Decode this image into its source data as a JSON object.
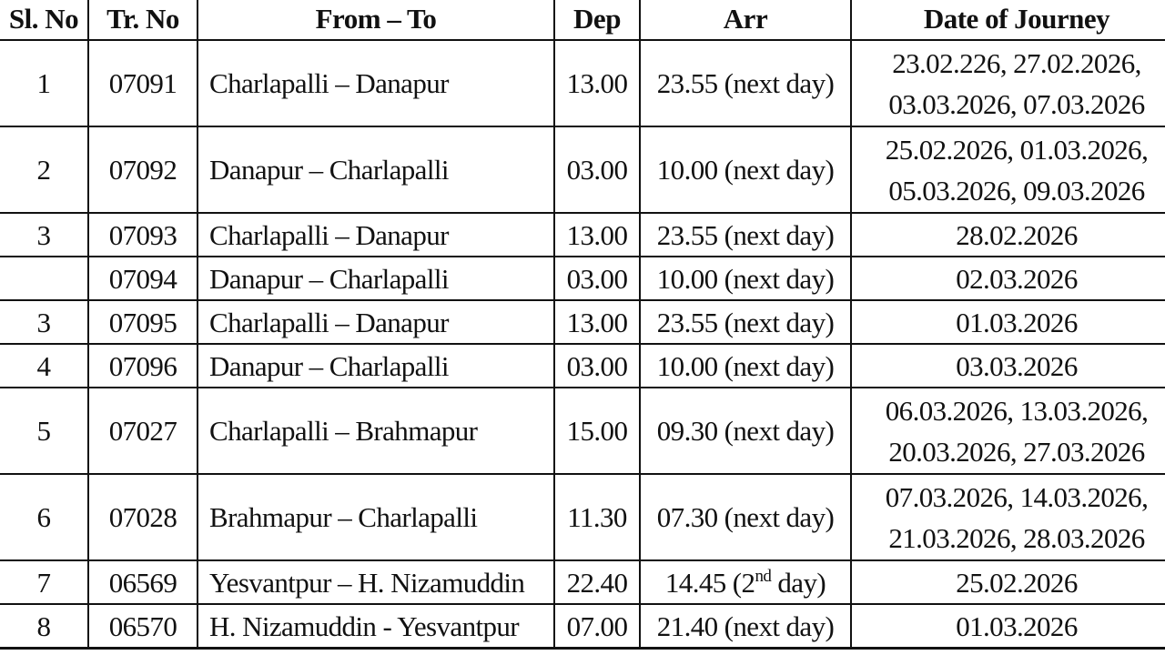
{
  "table": {
    "headers": {
      "sl_no": "Sl. No",
      "tr_no": "Tr. No",
      "from_to": "From – To",
      "dep": "Dep",
      "arr": "Arr",
      "date_of_journey": "Date of Journey"
    },
    "rows": [
      {
        "sl_no": "1",
        "tr_no": "07091",
        "from_to": "Charlapalli – Danapur",
        "dep": "13.00",
        "arr": "23.55 (next day)",
        "dates": [
          "23.02.226, 27.02.2026,",
          "03.03.2026, 07.03.2026"
        ]
      },
      {
        "sl_no": "2",
        "tr_no": "07092",
        "from_to": "Danapur – Charlapalli",
        "dep": "03.00",
        "arr": "10.00 (next day)",
        "dates": [
          "25.02.2026, 01.03.2026,",
          "05.03.2026, 09.03.2026"
        ]
      },
      {
        "sl_no": "3",
        "tr_no": "07093",
        "from_to": "Charlapalli – Danapur",
        "dep": "13.00",
        "arr": "23.55 (next day)",
        "dates": [
          "28.02.2026"
        ]
      },
      {
        "sl_no": "",
        "tr_no": "07094",
        "from_to": "Danapur – Charlapalli",
        "dep": "03.00",
        "arr": "10.00 (next day)",
        "dates": [
          "02.03.2026"
        ]
      },
      {
        "sl_no": "3",
        "tr_no": "07095",
        "from_to": "Charlapalli – Danapur",
        "dep": "13.00",
        "arr": "23.55 (next day)",
        "dates": [
          "01.03.2026"
        ]
      },
      {
        "sl_no": "4",
        "tr_no": "07096",
        "from_to": "Danapur – Charlapalli",
        "dep": "03.00",
        "arr": "10.00 (next day)",
        "dates": [
          "03.03.2026"
        ]
      },
      {
        "sl_no": "5",
        "tr_no": "07027",
        "from_to": "Charlapalli – Brahmapur",
        "dep": "15.00",
        "arr": "09.30 (next day)",
        "dates": [
          "06.03.2026, 13.03.2026,",
          "20.03.2026, 27.03.2026"
        ]
      },
      {
        "sl_no": "6",
        "tr_no": "07028",
        "from_to": "Brahmapur – Charlapalli",
        "dep": "11.30",
        "arr": "07.30 (next day)",
        "dates": [
          "07.03.2026, 14.03.2026,",
          "21.03.2026, 28.03.2026"
        ]
      },
      {
        "sl_no": "7",
        "tr_no": "06569",
        "from_to": "Yesvantpur – H. Nizamuddin",
        "dep": "22.40",
        "arr_parts": {
          "time": "14.45 (2",
          "sup": "nd",
          "rest": " day)"
        },
        "dates": [
          "25.02.2026"
        ]
      },
      {
        "sl_no": "8",
        "tr_no": "06570",
        "from_to": "H. Nizamuddin - Yesvantpur",
        "dep": "07.00",
        "arr": "21.40 (next day)",
        "dates": [
          "01.03.2026"
        ]
      }
    ]
  }
}
